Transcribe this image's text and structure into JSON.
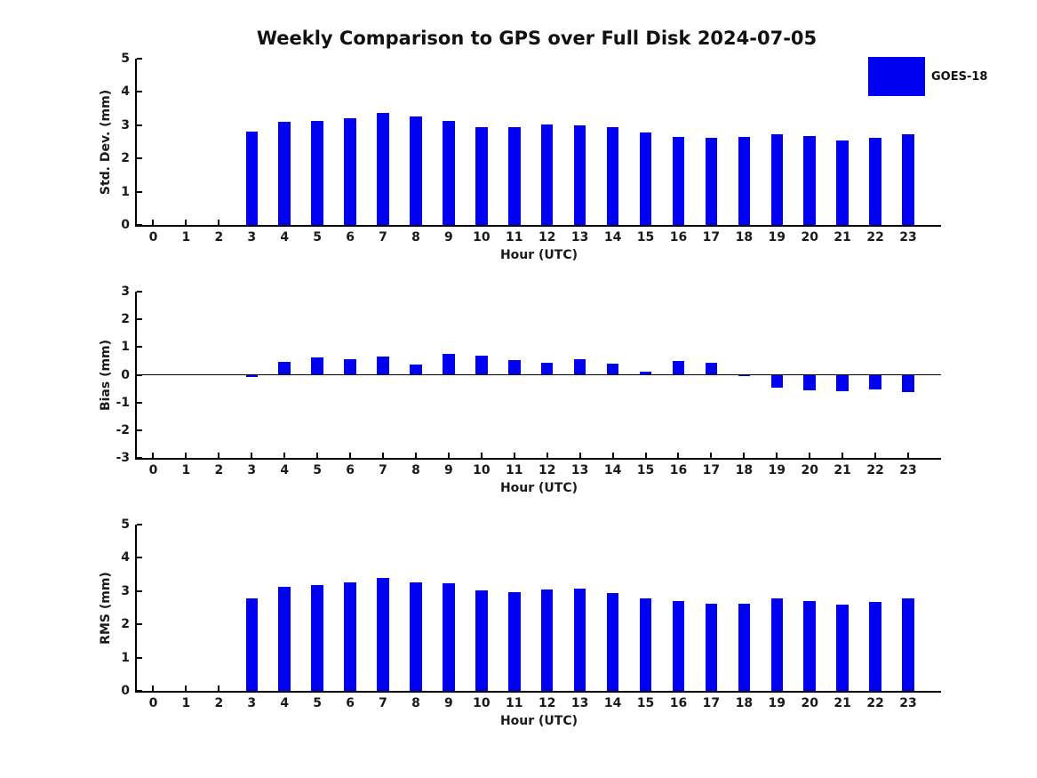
{
  "title": "Weekly Comparison to GPS over Full Disk 2024-07-05",
  "legend": {
    "label": "GOES-18"
  },
  "colors": {
    "bar": "#0000f2",
    "axis": "#000000",
    "text": "#1a1a1a"
  },
  "chart_data": [
    {
      "type": "bar",
      "name": "std-dev",
      "ylabel": "Std. Dev. (mm)",
      "xlabel": "Hour (UTC)",
      "ylim": [
        0,
        5
      ],
      "yticks": [
        0,
        1,
        2,
        3,
        4,
        5
      ],
      "grid": false,
      "legend_position": "top-right-outside",
      "categories": [
        0,
        1,
        2,
        3,
        4,
        5,
        6,
        7,
        8,
        9,
        10,
        11,
        12,
        13,
        14,
        15,
        16,
        17,
        18,
        19,
        20,
        21,
        22,
        23
      ],
      "values": [
        null,
        null,
        null,
        2.8,
        3.09,
        3.12,
        3.22,
        3.36,
        3.25,
        3.14,
        2.93,
        2.93,
        3.03,
        3.0,
        2.93,
        2.77,
        2.64,
        2.61,
        2.64,
        2.74,
        2.67,
        2.55,
        2.63,
        2.74
      ]
    },
    {
      "type": "bar",
      "name": "bias",
      "ylabel": "Bias (mm)",
      "xlabel": "Hour (UTC)",
      "ylim": [
        -3,
        3
      ],
      "yticks": [
        3,
        2,
        1,
        0,
        -1,
        -2,
        -3
      ],
      "grid": false,
      "zero_line": true,
      "categories": [
        0,
        1,
        2,
        3,
        4,
        5,
        6,
        7,
        8,
        9,
        10,
        11,
        12,
        13,
        14,
        15,
        16,
        17,
        18,
        19,
        20,
        21,
        22,
        23
      ],
      "values": [
        null,
        null,
        null,
        -0.07,
        0.47,
        0.62,
        0.56,
        0.65,
        0.37,
        0.76,
        0.7,
        0.54,
        0.42,
        0.57,
        0.4,
        0.1,
        0.5,
        0.42,
        -0.04,
        -0.46,
        -0.57,
        -0.58,
        -0.52,
        -0.62
      ]
    },
    {
      "type": "bar",
      "name": "rms",
      "ylabel": "RMS (mm)",
      "xlabel": "Hour (UTC)",
      "ylim": [
        0,
        5
      ],
      "yticks": [
        0,
        1,
        2,
        3,
        4,
        5
      ],
      "grid": false,
      "categories": [
        0,
        1,
        2,
        3,
        4,
        5,
        6,
        7,
        8,
        9,
        10,
        11,
        12,
        13,
        14,
        15,
        16,
        17,
        18,
        19,
        20,
        21,
        22,
        23
      ],
      "values": [
        null,
        null,
        null,
        2.79,
        3.13,
        3.18,
        3.27,
        3.39,
        3.27,
        3.24,
        3.01,
        2.98,
        3.05,
        3.08,
        2.95,
        2.78,
        2.71,
        2.62,
        2.63,
        2.78,
        2.71,
        2.6,
        2.68,
        2.79
      ]
    }
  ]
}
